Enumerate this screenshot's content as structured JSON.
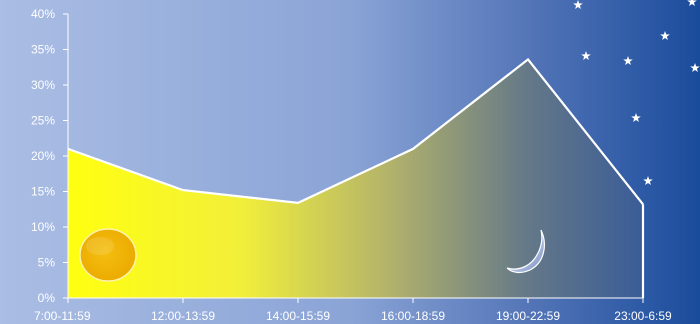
{
  "chart_data": {
    "type": "area",
    "title": "",
    "xlabel": "",
    "ylabel": "",
    "categories": [
      "7:00-11:59",
      "12:00-13:59",
      "14:00-15:59",
      "16:00-18:59",
      "19:00-22:59",
      "23:00-6:59"
    ],
    "values": [
      21.0,
      15.2,
      13.4,
      21.0,
      33.6,
      13.2
    ],
    "ylim": [
      0,
      40
    ],
    "y_ticks": [
      "0%",
      "5%",
      "10%",
      "15%",
      "20%",
      "25%",
      "30%",
      "35%",
      "40%"
    ],
    "y_tick_values": [
      0,
      5,
      10,
      15,
      20,
      25,
      30,
      35,
      40
    ],
    "grid": false,
    "legend": "none"
  },
  "decorations": {
    "sun_icon": "sun-icon",
    "moon_icon": "moon-icon",
    "star_icon": "star-icon",
    "colors": {
      "background_left": "#a9bde3",
      "background_right": "#1c4f9e",
      "area_left": "#ffff10",
      "area_right": "#3f5f96",
      "line": "#ffffff",
      "sun": "#f0b400"
    }
  }
}
